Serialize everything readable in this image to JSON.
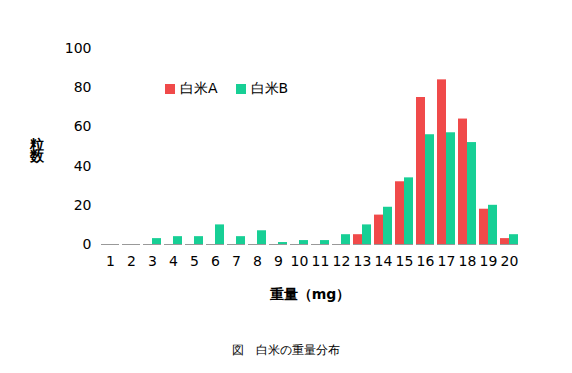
{
  "chart_data": {
    "type": "bar",
    "caption": "図　白米の重量分布",
    "x_label": "重量（mg）",
    "y_label": "粒数",
    "categories": [
      1,
      2,
      3,
      4,
      5,
      6,
      7,
      8,
      9,
      10,
      11,
      12,
      13,
      14,
      15,
      16,
      17,
      18,
      19,
      20
    ],
    "series": [
      {
        "name": "白米A",
        "color": "#f04a4a",
        "values": [
          0,
          0,
          0,
          0,
          0,
          0,
          0,
          0,
          0,
          0,
          0,
          0,
          5,
          15,
          32,
          75,
          84,
          64,
          18,
          3
        ]
      },
      {
        "name": "白米B",
        "color": "#17cf95",
        "values": [
          0,
          0,
          3,
          4,
          4,
          10,
          4,
          7,
          1,
          2,
          2,
          5,
          10,
          19,
          34,
          56,
          57,
          52,
          20,
          5
        ]
      }
    ],
    "ylim": [
      0,
      100
    ],
    "yticks": [
      0,
      20,
      40,
      60,
      80,
      100
    ],
    "grid": false,
    "legend": "top-left"
  }
}
